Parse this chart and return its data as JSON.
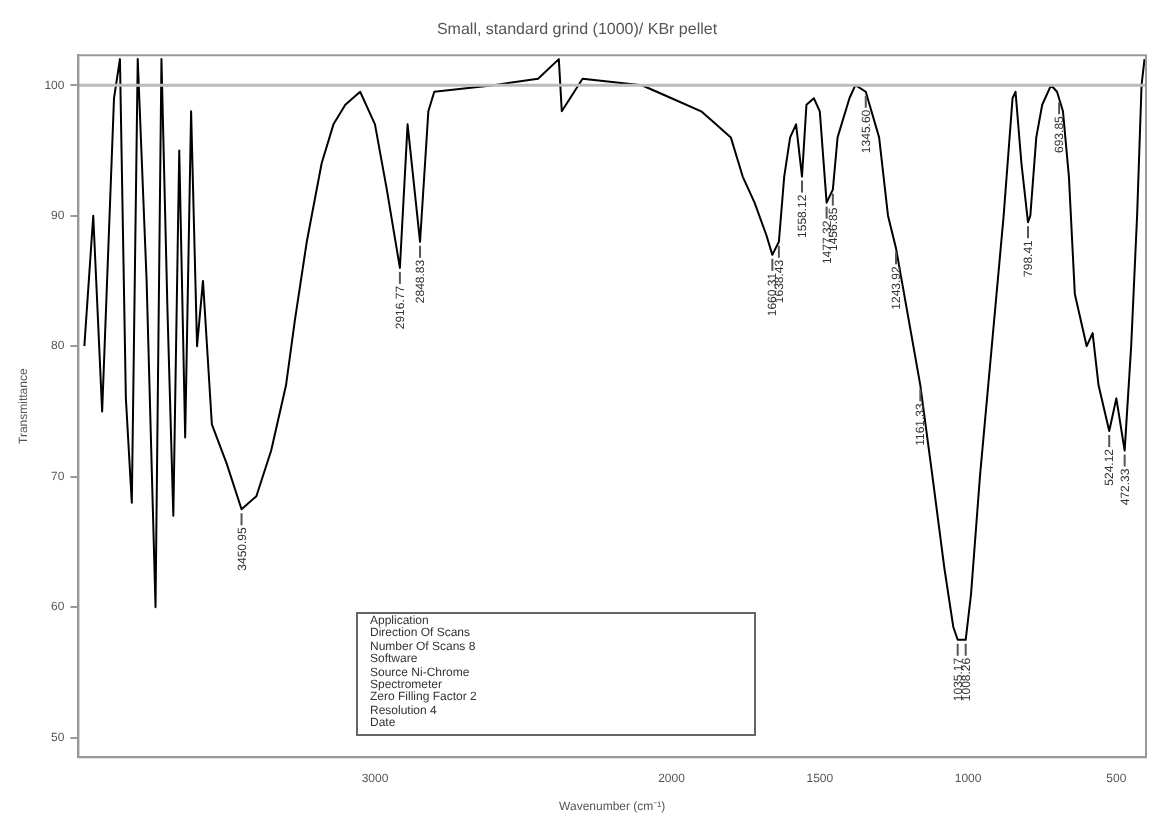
{
  "chart_data": {
    "type": "line",
    "title": "Small, standard grind (1000)/ KBr pellet",
    "xlabel": "Wavenumber (cm⁻¹)",
    "ylabel": "Transmittance",
    "x": [
      3980,
      3950,
      3920,
      3880,
      3860,
      3840,
      3820,
      3800,
      3770,
      3740,
      3720,
      3700,
      3680,
      3660,
      3640,
      3620,
      3600,
      3580,
      3550,
      3500,
      3450,
      3400,
      3350,
      3300,
      3270,
      3230,
      3180,
      3140,
      3100,
      3050,
      3000,
      2960,
      2916,
      2890,
      2848,
      2820,
      2800,
      2600,
      2450,
      2380,
      2370,
      2300,
      2100,
      2000,
      1900,
      1850,
      1800,
      1760,
      1720,
      1680,
      1660,
      1638,
      1620,
      1600,
      1580,
      1560,
      1545,
      1520,
      1500,
      1477,
      1456,
      1440,
      1400,
      1380,
      1345,
      1300,
      1270,
      1243,
      1200,
      1161,
      1120,
      1080,
      1050,
      1035,
      1008,
      990,
      960,
      920,
      880,
      850,
      840,
      820,
      798,
      790,
      770,
      750,
      720,
      700,
      680,
      660,
      640,
      600,
      580,
      560,
      524,
      500,
      472,
      450,
      430,
      415,
      405
    ],
    "series": [
      {
        "color": "#000000",
        "values": [
          80,
          90,
          75,
          99,
          102,
          76,
          68,
          102,
          85,
          60,
          102,
          83,
          67,
          95,
          73,
          98,
          80,
          85,
          74,
          71,
          67.5,
          68.5,
          72,
          77,
          82,
          88,
          94,
          97,
          98.5,
          99.5,
          97,
          92,
          86,
          97,
          88,
          98,
          99.5,
          100,
          100.5,
          102,
          98,
          100.5,
          100,
          99,
          98,
          97,
          96,
          93,
          91,
          88.5,
          87,
          88,
          93,
          96,
          97,
          93,
          98.5,
          99,
          98,
          91,
          92,
          96,
          99,
          100,
          99.5,
          96,
          90,
          87.5,
          82,
          77,
          70,
          63,
          58.5,
          57.5,
          57.5,
          61,
          70,
          80,
          90,
          99,
          99.5,
          94,
          89.5,
          90,
          96,
          98.5,
          100,
          99.5,
          98,
          93,
          84,
          80,
          81,
          77,
          73.5,
          76,
          72,
          80,
          90,
          100,
          102
        ]
      }
    ],
    "xlim": [
      4000,
      400
    ],
    "xticks": [
      3000,
      2000,
      1500,
      1000,
      500
    ],
    "ylim": [
      48.5,
      102.3
    ],
    "yticks": [
      50,
      60,
      70,
      80,
      90,
      100
    ],
    "grid": false,
    "legend": false,
    "marker": "none",
    "line_style": "solid",
    "ref_lines": [
      {
        "axis": "y",
        "value": 100,
        "color": "#bbbbbb"
      }
    ],
    "annotations": [
      {
        "text": "3450.95",
        "x": 3450,
        "y": 67.5
      },
      {
        "text": "2916.77",
        "x": 2916,
        "y": 86
      },
      {
        "text": "2848.83",
        "x": 2848,
        "y": 88
      },
      {
        "text": "1660.31",
        "x": 1660,
        "y": 87
      },
      {
        "text": "1638.43",
        "x": 1638,
        "y": 88
      },
      {
        "text": "1558.12",
        "x": 1560,
        "y": 93
      },
      {
        "text": "1477.32",
        "x": 1477,
        "y": 91
      },
      {
        "text": "1456.85",
        "x": 1456,
        "y": 92
      },
      {
        "text": "1345.60",
        "x": 1345,
        "y": 99.5
      },
      {
        "text": "1243.92",
        "x": 1243,
        "y": 87.5
      },
      {
        "text": "1161.33",
        "x": 1161,
        "y": 77
      },
      {
        "text": "1035.17",
        "x": 1035,
        "y": 57.5
      },
      {
        "text": "1008.26",
        "x": 1008,
        "y": 57.5
      },
      {
        "text": "798.41",
        "x": 798,
        "y": 89.5
      },
      {
        "text": "693.85",
        "x": 693,
        "y": 99
      },
      {
        "text": "524.12",
        "x": 524,
        "y": 73.5
      },
      {
        "text": "472.33",
        "x": 472,
        "y": 72
      },
      "Application",
      "Direction Of Scans",
      "Number Of Scans 8",
      "Software",
      "Source Ni-Chrome",
      "Spectrometer",
      "Zero Filling Factor 2",
      "Resolution 4",
      "Date"
    ]
  }
}
